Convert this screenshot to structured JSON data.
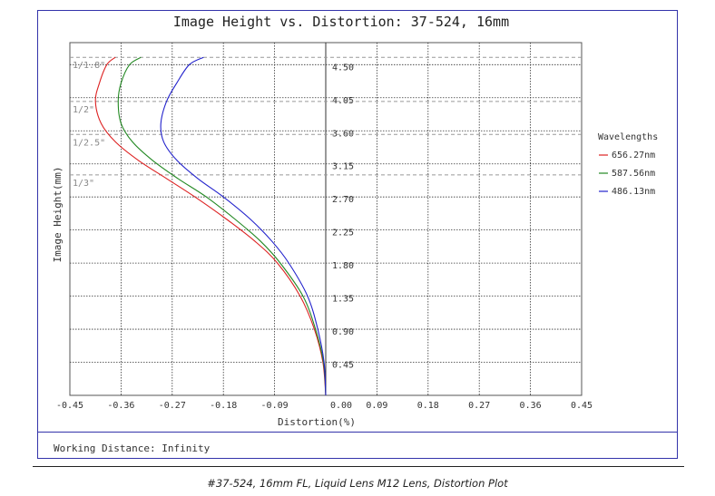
{
  "chart_data": {
    "type": "line",
    "title": "Image Height vs. Distortion: 37-524, 16mm",
    "xlabel": "Distortion(%)",
    "ylabel": "Image Height(mm)",
    "xlim": [
      -0.45,
      0.45
    ],
    "ylim": [
      0,
      4.8
    ],
    "x_ticks": [
      "-0.45",
      "-0.36",
      "-0.27",
      "-0.18",
      "-0.09",
      "0.00",
      "0.09",
      "0.18",
      "0.27",
      "0.36",
      "0.45"
    ],
    "y_ticks": [
      "0.45",
      "0.90",
      "1.35",
      "1.80",
      "2.25",
      "2.70",
      "3.15",
      "3.60",
      "4.05",
      "4.50"
    ],
    "grid": true,
    "legend_title": "Wavelengths",
    "legend_position": "right",
    "series": [
      {
        "name": "656.27nm",
        "color": "#dd2222",
        "x": [
          0,
          -0.005,
          -0.02,
          -0.045,
          -0.085,
          -0.125,
          -0.175,
          -0.23,
          -0.28,
          -0.33,
          -0.37,
          -0.395,
          -0.405,
          -0.398,
          -0.385,
          -0.37
        ],
        "y": [
          0,
          0.45,
          0.9,
          1.35,
          1.8,
          2.1,
          2.4,
          2.7,
          2.95,
          3.2,
          3.45,
          3.7,
          4.0,
          4.25,
          4.5,
          4.6
        ]
      },
      {
        "name": "587.56nm",
        "color": "#228822",
        "x": [
          0,
          -0.004,
          -0.018,
          -0.04,
          -0.08,
          -0.115,
          -0.16,
          -0.21,
          -0.26,
          -0.305,
          -0.34,
          -0.36,
          -0.365,
          -0.36,
          -0.345,
          -0.325
        ],
        "y": [
          0,
          0.45,
          0.9,
          1.35,
          1.8,
          2.1,
          2.4,
          2.7,
          2.95,
          3.2,
          3.45,
          3.7,
          4.0,
          4.25,
          4.5,
          4.6
        ]
      },
      {
        "name": "486.13nm",
        "color": "#2222cc",
        "x": [
          0,
          -0.003,
          -0.014,
          -0.032,
          -0.065,
          -0.095,
          -0.133,
          -0.18,
          -0.225,
          -0.262,
          -0.285,
          -0.29,
          -0.28,
          -0.262,
          -0.24,
          -0.215
        ],
        "y": [
          0,
          0.45,
          0.9,
          1.35,
          1.8,
          2.1,
          2.4,
          2.7,
          2.95,
          3.2,
          3.45,
          3.7,
          4.0,
          4.25,
          4.5,
          4.6
        ]
      }
    ],
    "annotations": [
      {
        "text": "1/1.8\"",
        "y": 4.6
      },
      {
        "text": "1/2\"",
        "y": 4.0
      },
      {
        "text": "1/2.5\"",
        "y": 3.55
      },
      {
        "text": "1/3\"",
        "y": 3.0
      }
    ]
  },
  "footer": "Working Distance: Infinity",
  "caption": "#37-524, 16mm FL, Liquid Lens M12 Lens, Distortion Plot"
}
